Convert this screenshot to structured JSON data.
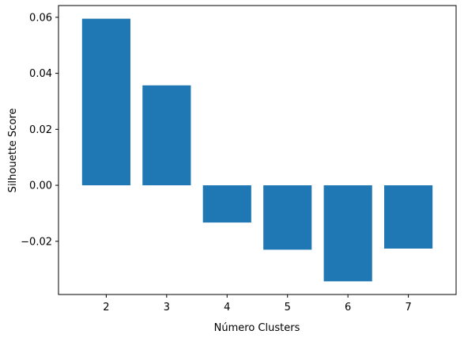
{
  "chart_data": {
    "type": "bar",
    "categories": [
      "2",
      "3",
      "4",
      "5",
      "6",
      "7"
    ],
    "values": [
      0.0595,
      0.0357,
      -0.0133,
      -0.023,
      -0.0343,
      -0.0226
    ],
    "title": "",
    "xlabel": "Número Clusters",
    "ylabel": "Silhouette Score",
    "ylim": [
      -0.039,
      0.0642
    ],
    "yticks": [
      {
        "value": 0.06,
        "label": "0.06"
      },
      {
        "value": 0.04,
        "label": "0.04"
      },
      {
        "value": 0.02,
        "label": "0.02"
      },
      {
        "value": 0.0,
        "label": "0.00"
      },
      {
        "value": -0.02,
        "label": "−0.02"
      }
    ],
    "grid": false,
    "bar_color": "#1f77b4"
  }
}
